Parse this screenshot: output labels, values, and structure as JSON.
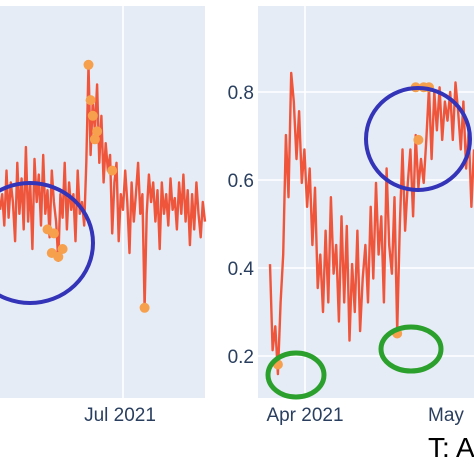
{
  "chart_data": [
    {
      "type": "line",
      "panel": "left",
      "title": "",
      "xlabel": "",
      "ylabel": "",
      "x_tick_labels": [
        "Jul 2021"
      ],
      "y_tick_labels": [],
      "ylim": [
        0.0,
        1.0
      ],
      "grid": true,
      "series": [
        {
          "color": "#ef553b",
          "values": [
            0.48,
            0.52,
            0.44,
            0.58,
            0.46,
            0.55,
            0.5,
            0.4,
            0.6,
            0.47,
            0.56,
            0.43,
            0.64,
            0.45,
            0.55,
            0.38,
            0.61,
            0.5,
            0.57,
            0.44,
            0.62,
            0.47,
            0.53,
            0.41,
            0.58,
            0.5,
            0.45,
            0.35,
            0.52,
            0.46,
            0.6,
            0.43,
            0.55,
            0.48,
            0.52,
            0.4,
            0.58,
            0.47,
            0.5,
            0.44,
            0.6,
            0.85,
            0.62,
            0.76,
            0.68,
            0.8,
            0.6,
            0.72,
            0.55,
            0.65,
            0.58,
            0.62,
            0.42,
            0.55,
            0.6,
            0.4,
            0.52,
            0.48,
            0.58,
            0.5,
            0.37,
            0.55,
            0.45,
            0.52,
            0.6,
            0.47,
            0.52,
            0.23,
            0.47,
            0.57,
            0.5,
            0.55,
            0.45,
            0.53,
            0.38,
            0.55,
            0.47,
            0.52,
            0.44,
            0.56,
            0.48,
            0.51,
            0.43,
            0.55,
            0.47,
            0.57,
            0.45,
            0.53,
            0.39,
            0.52,
            0.43,
            0.55,
            0.47,
            0.41,
            0.5,
            0.45
          ]
        }
      ],
      "anomaly_points": [
        [
          22,
          0.43
        ],
        [
          24,
          0.37
        ],
        [
          25,
          0.42
        ],
        [
          27,
          0.36
        ],
        [
          29,
          0.38
        ],
        [
          41,
          0.85
        ],
        [
          42,
          0.76
        ],
        [
          43,
          0.72
        ],
        [
          44,
          0.66
        ],
        [
          45,
          0.68
        ],
        [
          52,
          0.58
        ],
        [
          67,
          0.23
        ]
      ],
      "marker_color": "#f6a04d",
      "highlight_circles": [
        {
          "color": "#3434b8"
        }
      ]
    },
    {
      "type": "line",
      "panel": "right",
      "title": "",
      "xlabel": "",
      "ylabel": "",
      "x_tick_labels": [
        "Apr 2021",
        "May"
      ],
      "y_tick_labels": [
        "0.2",
        "0.4",
        "0.6",
        "0.8"
      ],
      "ylim": [
        0.1,
        0.92
      ],
      "grid": true,
      "series": [
        {
          "color": "#ef553b",
          "values": [
            0.38,
            0.2,
            0.25,
            0.15,
            0.3,
            0.4,
            0.65,
            0.52,
            0.78,
            0.72,
            0.6,
            0.7,
            0.55,
            0.62,
            0.5,
            0.58,
            0.42,
            0.54,
            0.33,
            0.4,
            0.28,
            0.45,
            0.3,
            0.52,
            0.36,
            0.42,
            0.26,
            0.48,
            0.3,
            0.46,
            0.22,
            0.38,
            0.28,
            0.45,
            0.24,
            0.35,
            0.42,
            0.3,
            0.5,
            0.35,
            0.55,
            0.4,
            0.48,
            0.3,
            0.58,
            0.42,
            0.36,
            0.52,
            0.24,
            0.46,
            0.62,
            0.45,
            0.55,
            0.62,
            0.48,
            0.65,
            0.54,
            0.6,
            0.55,
            0.64,
            0.75,
            0.6,
            0.74,
            0.66,
            0.75,
            0.64,
            0.72,
            0.68,
            0.74,
            0.64,
            0.76,
            0.7,
            0.62,
            0.72,
            0.58,
            0.66,
            0.5,
            0.62
          ]
        }
      ],
      "anomaly_points": [
        [
          3,
          0.17
        ],
        [
          48,
          0.235
        ],
        [
          55,
          0.75
        ],
        [
          56,
          0.64
        ],
        [
          58,
          0.75
        ],
        [
          60,
          0.75
        ]
      ],
      "marker_color": "#f6a04d",
      "highlight_circles": [
        {
          "color": "#3434b8"
        },
        {
          "color": "#2ca02c"
        },
        {
          "color": "#2ca02c"
        }
      ]
    }
  ],
  "caption": "T: A"
}
